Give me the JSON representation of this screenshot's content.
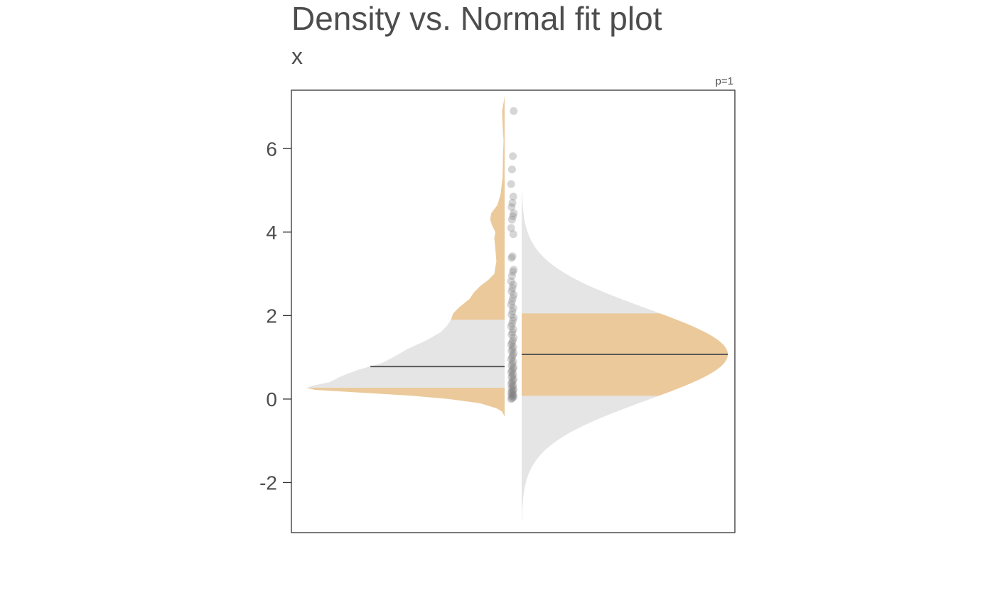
{
  "chart_data": {
    "type": "violin",
    "title": "Density vs. Normal fit plot",
    "subtitle": "x",
    "annotation": "p=1",
    "ylim": [
      -3.2,
      7.4
    ],
    "yticks": [
      {
        "value": 6,
        "label": "6"
      },
      {
        "value": 4,
        "label": "4"
      },
      {
        "value": 2,
        "label": "2"
      },
      {
        "value": 0,
        "label": "0"
      },
      {
        "value": -2,
        "label": "-2"
      }
    ],
    "grid": false,
    "colors": {
      "band": "#ebc99a",
      "outer": "#e5e5e5",
      "points": "#7f7f7f",
      "line": "#595959",
      "text": "#4d4d4d",
      "frame": "#333333"
    },
    "empirical_density": {
      "side": "left",
      "median": 0.78,
      "band": [
        0.27,
        1.9
      ],
      "profile": [
        [
          -0.42,
          0.0
        ],
        [
          -0.3,
          0.012
        ],
        [
          -0.22,
          0.04
        ],
        [
          -0.1,
          0.12
        ],
        [
          0.0,
          0.27
        ],
        [
          0.08,
          0.45
        ],
        [
          0.16,
          0.72
        ],
        [
          0.22,
          0.92
        ],
        [
          0.27,
          0.96
        ],
        [
          0.32,
          0.93
        ],
        [
          0.4,
          0.85
        ],
        [
          0.55,
          0.79
        ],
        [
          0.7,
          0.71
        ],
        [
          0.85,
          0.6
        ],
        [
          1.0,
          0.54
        ],
        [
          1.2,
          0.47
        ],
        [
          1.4,
          0.38
        ],
        [
          1.6,
          0.31
        ],
        [
          1.75,
          0.28
        ],
        [
          1.9,
          0.26
        ],
        [
          2.05,
          0.25
        ],
        [
          2.2,
          0.22
        ],
        [
          2.4,
          0.17
        ],
        [
          2.55,
          0.15
        ],
        [
          2.7,
          0.12
        ],
        [
          2.85,
          0.08
        ],
        [
          3.0,
          0.05
        ],
        [
          3.3,
          0.04
        ],
        [
          3.6,
          0.045
        ],
        [
          3.85,
          0.05
        ],
        [
          4.0,
          0.045
        ],
        [
          4.15,
          0.06
        ],
        [
          4.3,
          0.07
        ],
        [
          4.45,
          0.065
        ],
        [
          4.65,
          0.035
        ],
        [
          4.9,
          0.02
        ],
        [
          5.3,
          0.01
        ],
        [
          5.8,
          0.008
        ],
        [
          6.2,
          0.005
        ],
        [
          6.6,
          0.01
        ],
        [
          6.9,
          0.012
        ],
        [
          7.1,
          0.005
        ],
        [
          7.25,
          0.0
        ]
      ]
    },
    "normal_fit": {
      "side": "right",
      "mean": 1.07,
      "sd": 1.1,
      "range": [
        -2.9,
        4.95
      ],
      "band": [
        0.08,
        2.05
      ]
    },
    "points": [
      0.0,
      0.02,
      0.04,
      0.06,
      0.08,
      0.1,
      0.12,
      0.15,
      0.18,
      0.2,
      0.23,
      0.26,
      0.3,
      0.33,
      0.36,
      0.4,
      0.44,
      0.48,
      0.52,
      0.56,
      0.6,
      0.64,
      0.68,
      0.72,
      0.76,
      0.8,
      0.85,
      0.9,
      0.95,
      1.0,
      1.05,
      1.1,
      1.15,
      1.2,
      1.25,
      1.3,
      1.35,
      1.4,
      1.47,
      1.54,
      1.6,
      1.67,
      1.74,
      1.8,
      1.88,
      1.95,
      2.02,
      2.1,
      2.18,
      2.26,
      2.34,
      2.42,
      2.5,
      2.58,
      2.66,
      2.74,
      2.82,
      2.95,
      3.05,
      3.1,
      3.38,
      3.42,
      3.95,
      4.1,
      4.3,
      4.38,
      4.45,
      4.6,
      4.7,
      4.85,
      5.15,
      5.5,
      5.82,
      6.9
    ]
  }
}
